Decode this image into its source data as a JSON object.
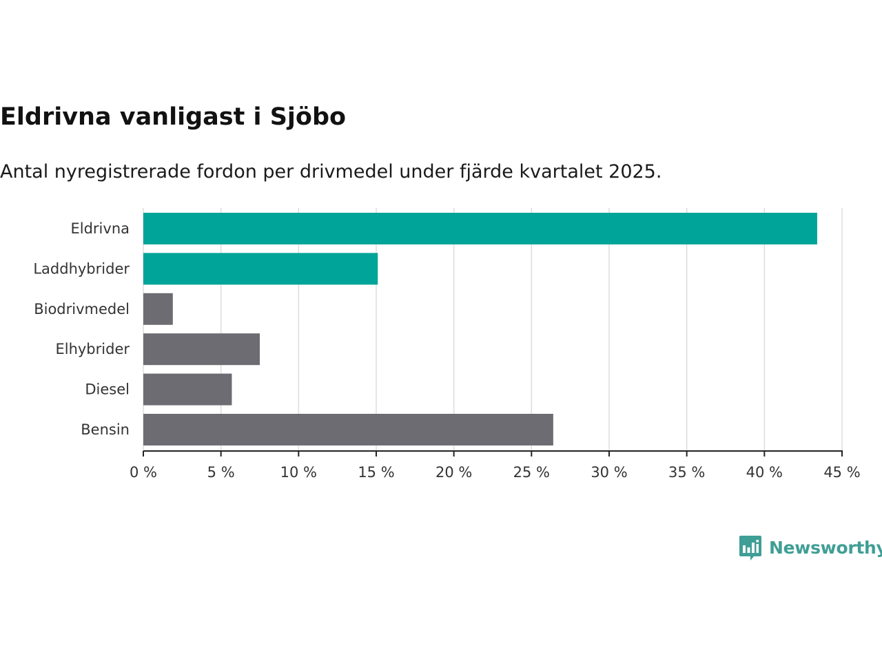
{
  "header": {
    "title": "Eldrivna vanligast i Sjöbo",
    "subtitle": "Antal nyregistrerade fordon per drivmedel under fjärde kvartalet 2025."
  },
  "brand": {
    "name": "Newsworthy",
    "color": "#3f9e95",
    "icon": "newsworthy-logo-icon"
  },
  "colors": {
    "highlight": "#00a499",
    "default": "#6d6c72",
    "grid": "#dddddd",
    "axis": "#222222"
  },
  "chart_data": {
    "type": "bar",
    "orientation": "horizontal",
    "title": "Eldrivna vanligast i Sjöbo",
    "subtitle": "Antal nyregistrerade fordon per drivmedel under fjärde kvartalet 2025.",
    "xlabel": "",
    "ylabel": "",
    "unit": "%",
    "xlim": [
      0,
      45
    ],
    "grid": true,
    "ticks": [
      {
        "value": 0,
        "label": "0 %"
      },
      {
        "value": 5,
        "label": "5 %"
      },
      {
        "value": 10,
        "label": "10 %"
      },
      {
        "value": 15,
        "label": "15 %"
      },
      {
        "value": 20,
        "label": "20 %"
      },
      {
        "value": 25,
        "label": "25 %"
      },
      {
        "value": 30,
        "label": "30 %"
      },
      {
        "value": 35,
        "label": "35 %"
      },
      {
        "value": 40,
        "label": "40 %"
      },
      {
        "value": 45,
        "label": "45 %"
      }
    ],
    "categories": [
      "Eldrivna",
      "Laddhybrider",
      "Biodrivmedel",
      "Elhybrider",
      "Diesel",
      "Bensin"
    ],
    "values": [
      43.4,
      15.1,
      1.9,
      7.5,
      5.7,
      26.4
    ],
    "highlighted": [
      true,
      true,
      false,
      false,
      false,
      false
    ]
  }
}
